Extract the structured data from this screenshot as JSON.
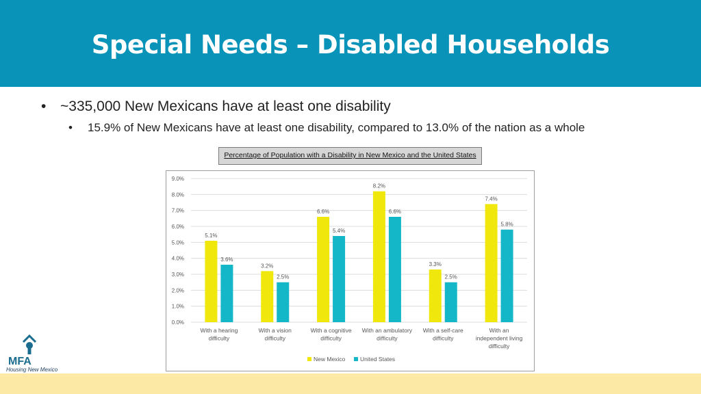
{
  "header": {
    "title": "Special Needs – Disabled Households"
  },
  "bullets": {
    "level1": "~335,000 New Mexicans have at least one disability",
    "level2": "15.9% of New Mexicans have at least one disability, compared to 13.0% of the nation as a whole",
    "marker": "•"
  },
  "logo": {
    "name": "MFA",
    "tagline": "Housing New Mexico"
  },
  "colors": {
    "header": "#0a93b8",
    "new_mexico": "#f0e80c",
    "united_states": "#13b7c8",
    "bottom_band": "#fde9a6"
  },
  "chart_data": {
    "type": "bar",
    "title": "Percentage of Population with a Disability in New Mexico and the United States",
    "categories": [
      [
        "With a hearing",
        "difficulty"
      ],
      [
        "With a vision",
        "difficulty"
      ],
      [
        "With a cognitive",
        "difficulty"
      ],
      [
        "With an ambulatory",
        "difficulty"
      ],
      [
        "With a self-care",
        "difficulty"
      ],
      [
        "With an",
        "independent living",
        "difficulty"
      ]
    ],
    "series": [
      {
        "name": "New Mexico",
        "values": [
          5.1,
          3.2,
          6.6,
          8.2,
          3.3,
          7.4
        ],
        "labels": [
          "5.1%",
          "3.2%",
          "6.6%",
          "8.2%",
          "3.3%",
          "7.4%"
        ]
      },
      {
        "name": "United States",
        "values": [
          3.6,
          2.5,
          5.4,
          6.6,
          2.5,
          5.8
        ],
        "labels": [
          "3.6%",
          "2.5%",
          "5.4%",
          "6.6%",
          "2.5%",
          "5.8%"
        ]
      }
    ],
    "yticks": [
      "0.0%",
      "1.0%",
      "2.0%",
      "3.0%",
      "4.0%",
      "5.0%",
      "6.0%",
      "7.0%",
      "8.0%",
      "9.0%"
    ],
    "ylim": [
      0,
      9
    ],
    "grid": true,
    "legend": "bottom"
  }
}
